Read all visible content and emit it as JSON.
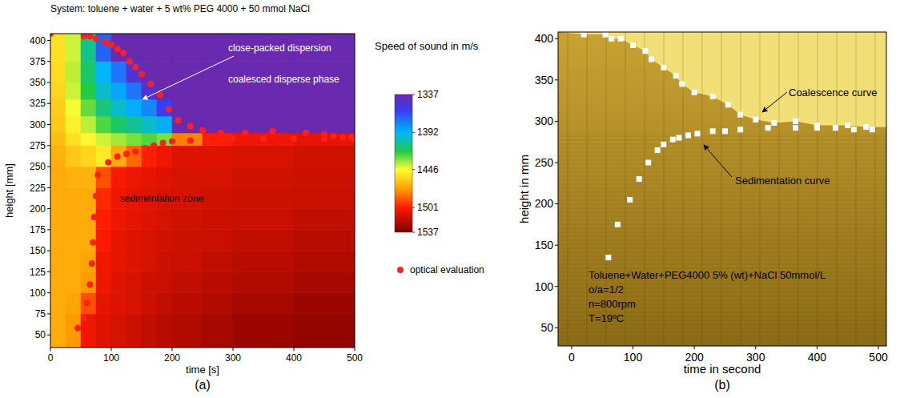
{
  "chart_data": [
    {
      "type": "heatmap",
      "panel_label": "(a)",
      "title": "System: toluene + water + 5 wt% PEG 4000 + 50 mmol NaCl",
      "x_label": "time [s]",
      "y_label": "height [mm]",
      "xlim": [
        0,
        500
      ],
      "xticks": [
        0,
        100,
        200,
        300,
        400,
        500
      ],
      "ylim": [
        35,
        408
      ],
      "yticks": [
        50,
        75,
        100,
        125,
        150,
        175,
        200,
        225,
        250,
        275,
        300,
        325,
        350,
        375,
        400
      ],
      "grid": false,
      "legend": "right",
      "x_edges": [
        0,
        25,
        50,
        75,
        100,
        125,
        150,
        175,
        200,
        250,
        300,
        400,
        500
      ],
      "y_edges": [
        35,
        75,
        100,
        125,
        150,
        175,
        200,
        225,
        250,
        275,
        290,
        310,
        330,
        350,
        375,
        408
      ],
      "cells": [
        [
          1470,
          1475,
          1505,
          1510,
          1512,
          1515,
          1518,
          1520,
          1522,
          1525,
          1528,
          1530
        ],
        [
          1470,
          1472,
          1490,
          1508,
          1510,
          1512,
          1515,
          1518,
          1520,
          1522,
          1525,
          1528
        ],
        [
          1470,
          1470,
          1475,
          1505,
          1510,
          1512,
          1515,
          1516,
          1518,
          1520,
          1522,
          1525
        ],
        [
          1470,
          1470,
          1472,
          1505,
          1508,
          1510,
          1512,
          1515,
          1516,
          1518,
          1520,
          1522
        ],
        [
          1470,
          1470,
          1470,
          1502,
          1508,
          1510,
          1512,
          1514,
          1515,
          1516,
          1518,
          1520
        ],
        [
          1470,
          1470,
          1470,
          1500,
          1506,
          1508,
          1510,
          1512,
          1514,
          1515,
          1516,
          1518
        ],
        [
          1470,
          1470,
          1470,
          1498,
          1505,
          1508,
          1510,
          1512,
          1512,
          1514,
          1515,
          1516
        ],
        [
          1470,
          1468,
          1468,
          1490,
          1503,
          1506,
          1508,
          1510,
          1512,
          1512,
          1514,
          1515
        ],
        [
          1468,
          1462,
          1458,
          1452,
          1470,
          1485,
          1500,
          1505,
          1510,
          1510,
          1512,
          1514
        ],
        [
          1465,
          1455,
          1448,
          1440,
          1435,
          1430,
          1425,
          1430,
          1480,
          1500,
          1505,
          1508
        ],
        [
          1462,
          1450,
          1438,
          1425,
          1415,
          1408,
          1400,
          1390,
          1337,
          1337,
          1337,
          1337
        ],
        [
          1460,
          1445,
          1428,
          1412,
          1400,
          1390,
          1380,
          1360,
          1337,
          1337,
          1337,
          1337
        ],
        [
          1458,
          1440,
          1420,
          1400,
          1388,
          1375,
          1350,
          1337,
          1337,
          1337,
          1337,
          1337
        ],
        [
          1456,
          1438,
          1415,
          1392,
          1375,
          1350,
          1337,
          1337,
          1337,
          1337,
          1337,
          1337
        ],
        [
          1455,
          1440,
          1410,
          1370,
          1337,
          1337,
          1337,
          1337,
          1337,
          1337,
          1337,
          1337
        ]
      ],
      "colorbar": {
        "title": "Speed of sound in m/s",
        "range": [
          1337,
          1537
        ],
        "ticks": [
          1337,
          1392,
          1446,
          1501,
          1537
        ]
      },
      "annotations": [
        "close-packed dispersion",
        "coalesced disperse phase",
        "sedimentation zone"
      ],
      "series": [
        {
          "name": "optical evaluation",
          "type": "scatter",
          "color": "#ff1f1f",
          "marker": "circle",
          "x": [
            0,
            55,
            65,
            75,
            90,
            100,
            110,
            120,
            130,
            140,
            150,
            165,
            180,
            195,
            210,
            230,
            250,
            280,
            320,
            365,
            420,
            450,
            465,
            480,
            495,
            45,
            55,
            60,
            65,
            68,
            70,
            72,
            75,
            78,
            95,
            110,
            125,
            140,
            155,
            170,
            185,
            200,
            230,
            260,
            300,
            350,
            400,
            450,
            500
          ],
          "values": [
            408,
            405,
            405,
            402,
            398,
            395,
            390,
            385,
            375,
            368,
            360,
            348,
            335,
            318,
            305,
            298,
            293,
            290,
            290,
            292,
            290,
            288,
            286,
            285,
            285,
            58,
            70,
            88,
            110,
            135,
            160,
            190,
            215,
            240,
            255,
            262,
            265,
            268,
            272,
            275,
            278,
            280,
            281,
            282,
            283,
            283,
            283,
            283,
            282
          ]
        }
      ]
    },
    {
      "type": "scatter",
      "panel_label": "(b)",
      "x_label": "time in second",
      "y_label": "height in mm",
      "xlim": [
        -22,
        513
      ],
      "xticks": [
        0,
        100,
        200,
        300,
        400,
        500
      ],
      "ylim": [
        28,
        408
      ],
      "yticks": [
        50,
        100,
        150,
        200,
        250,
        300,
        350,
        400
      ],
      "grid": false,
      "annotations": [
        "Coalescence curve",
        "Sedimentation curve"
      ],
      "text_block": [
        "Toluene+Water+PEG4000 5% (wt)+NaCl 50mmol/L",
        "o/a=1/2",
        "n=800rpm",
        "T=19ºC"
      ],
      "series": [
        {
          "type": "scatter",
          "color": "#ffffff",
          "marker": "square",
          "x": [
            20,
            55,
            65,
            80,
            100,
            120,
            130,
            150,
            170,
            180,
            200,
            230,
            255,
            275,
            300,
            330,
            365,
            400,
            450,
            480
          ],
          "values": [
            405,
            405,
            400,
            400,
            392,
            385,
            375,
            365,
            355,
            345,
            335,
            330,
            320,
            308,
            302,
            298,
            300,
            295,
            295,
            293
          ]
        },
        {
          "type": "scatter",
          "color": "#ffffff",
          "marker": "square",
          "x": [
            60,
            75,
            95,
            110,
            125,
            140,
            150,
            165,
            175,
            190,
            205,
            230,
            250,
            275,
            320,
            365,
            400,
            430,
            460,
            490
          ],
          "values": [
            135,
            175,
            205,
            230,
            250,
            265,
            272,
            278,
            280,
            283,
            285,
            288,
            288,
            290,
            292,
            292,
            292,
            292,
            290,
            290
          ]
        }
      ]
    }
  ]
}
